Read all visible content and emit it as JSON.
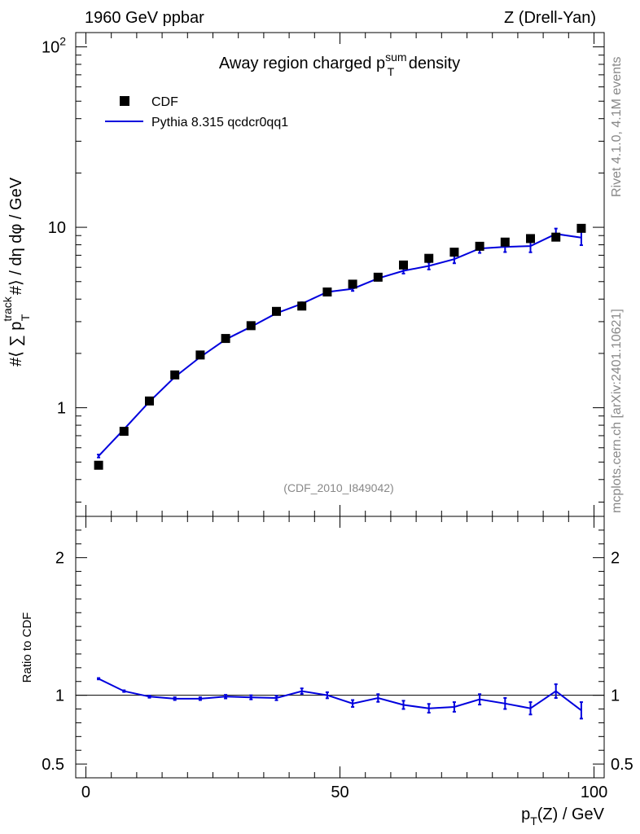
{
  "header": {
    "left": "1960 GeV ppbar",
    "right": "Z (Drell-Yan)"
  },
  "side": {
    "rivet": "Rivet 4.1.0,  4.1M events",
    "mcplots": "mcplots.cern.ch [arXiv:2401.10621]"
  },
  "chart_data": [
    {
      "type": "scatter",
      "panel": "main",
      "title": "Away region charged p_T^sum density",
      "title_parts": {
        "pre": "Away region charged p",
        "sup": "sum",
        "sub": "T",
        "post": " density"
      },
      "ylabel_parts": {
        "a": "#⟨ ∑ p",
        "sup": "track",
        "sub": "T",
        "b": " #⟩ / dη dφ / GeV"
      },
      "yscale": "log",
      "xlim": [
        -2,
        102
      ],
      "ylim": [
        0.25,
        120
      ],
      "y_tick_labels": [
        {
          "value": 1,
          "label": "1"
        },
        {
          "value": 10,
          "label": "10"
        },
        {
          "value": 100,
          "label": "10",
          "sup": "2"
        }
      ],
      "watermark": "(CDF_2010_I849042)",
      "legend": {
        "position": "top-left",
        "entries": [
          {
            "label": "CDF",
            "marker": "square",
            "color": "#000000"
          },
          {
            "label": "Pythia 8.315 qcdcr0qq1",
            "marker": "line",
            "color": "#0000dd"
          }
        ]
      },
      "series": [
        {
          "name": "CDF",
          "color": "#000000",
          "x": [
            2.5,
            7.5,
            12.5,
            17.5,
            22.5,
            27.5,
            32.5,
            37.5,
            42.5,
            47.5,
            52.5,
            57.5,
            62.5,
            67.5,
            72.5,
            77.5,
            82.5,
            87.5,
            92.5,
            97.5
          ],
          "y": [
            0.48,
            0.74,
            1.09,
            1.52,
            1.96,
            2.42,
            2.85,
            3.42,
            3.66,
            4.38,
            4.84,
            5.29,
            6.18,
            6.73,
            7.28,
            7.85,
            8.28,
            8.66,
            8.82,
            9.87
          ]
        },
        {
          "name": "Pythia 8.315 qcdcr0qq1",
          "color": "#0000dd",
          "x": [
            2.5,
            7.5,
            12.5,
            17.5,
            22.5,
            27.5,
            32.5,
            37.5,
            42.5,
            47.5,
            52.5,
            57.5,
            62.5,
            67.5,
            72.5,
            77.5,
            82.5,
            87.5,
            92.5,
            97.5
          ],
          "y": [
            0.54,
            0.76,
            1.08,
            1.48,
            1.91,
            2.39,
            2.81,
            3.34,
            3.77,
            4.38,
            4.56,
            5.21,
            5.74,
            6.11,
            6.66,
            7.63,
            7.79,
            7.87,
            9.19,
            8.76
          ],
          "yerr": [
            0.01,
            0.01,
            0.01,
            0.02,
            0.02,
            0.03,
            0.04,
            0.05,
            0.07,
            0.09,
            0.12,
            0.15,
            0.2,
            0.27,
            0.34,
            0.42,
            0.5,
            0.6,
            0.65,
            0.8
          ]
        }
      ]
    },
    {
      "type": "line",
      "panel": "ratio",
      "ylabel": "Ratio to CDF",
      "xlabel_parts": {
        "a": "p",
        "sub": "T",
        "b": "(Z) / GeV"
      },
      "xlim": [
        -2,
        102
      ],
      "ylim": [
        0.4,
        2.3
      ],
      "x_tick_labels": [
        {
          "value": 0,
          "label": "0"
        },
        {
          "value": 50,
          "label": "50"
        },
        {
          "value": 100,
          "label": "100"
        }
      ],
      "y_tick_labels": [
        {
          "value": 0.5,
          "label": "0.5"
        },
        {
          "value": 1,
          "label": "1"
        },
        {
          "value": 2,
          "label": "2"
        }
      ],
      "series": [
        {
          "name": "Pythia 8.315 qcdcr0qq1 / CDF",
          "color": "#0000dd",
          "x": [
            2.5,
            7.5,
            12.5,
            17.5,
            22.5,
            27.5,
            32.5,
            37.5,
            42.5,
            47.5,
            52.5,
            57.5,
            62.5,
            67.5,
            72.5,
            77.5,
            82.5,
            87.5,
            92.5,
            97.5
          ],
          "y": [
            1.12,
            1.03,
            0.99,
            0.975,
            0.975,
            0.99,
            0.985,
            0.98,
            1.03,
            1.0,
            0.94,
            0.98,
            0.93,
            0.905,
            0.915,
            0.97,
            0.94,
            0.905,
            1.03,
            0.89
          ],
          "yerr": [
            0.005,
            0.006,
            0.008,
            0.01,
            0.01,
            0.013,
            0.015,
            0.016,
            0.02,
            0.022,
            0.025,
            0.028,
            0.03,
            0.032,
            0.035,
            0.038,
            0.04,
            0.045,
            0.05,
            0.06
          ]
        }
      ]
    }
  ]
}
